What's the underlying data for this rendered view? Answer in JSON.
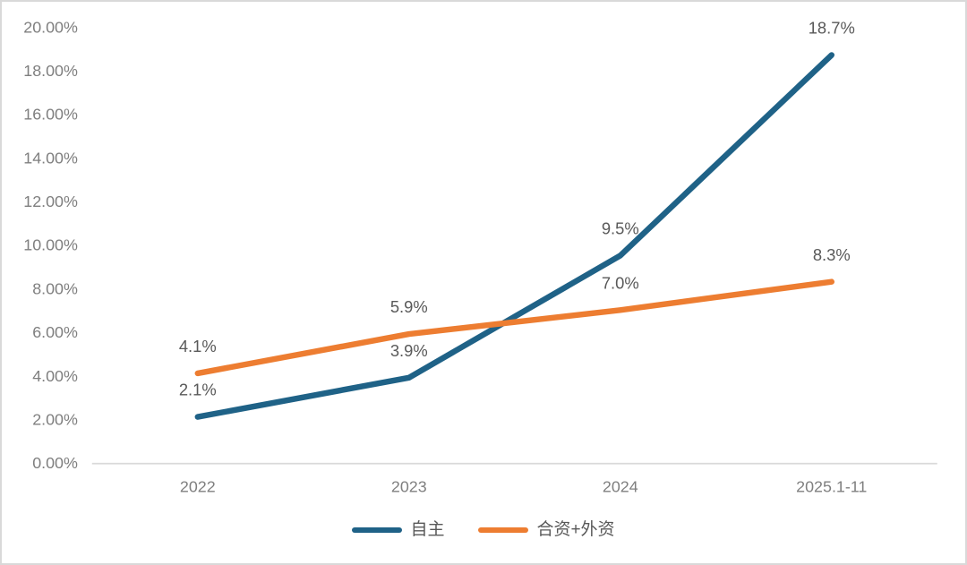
{
  "chart_data": {
    "type": "line",
    "title": "",
    "xlabel": "",
    "ylabel": "",
    "categories": [
      "2022",
      "2023",
      "2024",
      "2025.1-11"
    ],
    "series": [
      {
        "name": "自主",
        "color": "#1f6287",
        "values": [
          2.1,
          3.9,
          9.5,
          18.7
        ],
        "point_labels": [
          "2.1%",
          "3.9%",
          "9.5%",
          "18.7%"
        ]
      },
      {
        "name": "合资+外资",
        "color": "#ed7d31",
        "values": [
          4.1,
          5.9,
          7.0,
          8.3
        ],
        "point_labels": [
          "4.1%",
          "5.9%",
          "7.0%",
          "8.3%"
        ]
      }
    ],
    "ylim": [
      0,
      20
    ],
    "y_ticks": [
      {
        "value": 0,
        "label": "0.00%"
      },
      {
        "value": 2,
        "label": "2.00%"
      },
      {
        "value": 4,
        "label": "4.00%"
      },
      {
        "value": 6,
        "label": "6.00%"
      },
      {
        "value": 8,
        "label": "8.00%"
      },
      {
        "value": 10,
        "label": "10.00%"
      },
      {
        "value": 12,
        "label": "12.00%"
      },
      {
        "value": 14,
        "label": "14.00%"
      },
      {
        "value": 16,
        "label": "16.00%"
      },
      {
        "value": 18,
        "label": "18.00%"
      },
      {
        "value": 20,
        "label": "20.00%"
      }
    ],
    "grid": false,
    "legend_position": "bottom"
  },
  "colors": {
    "background": "#ffffff",
    "frame_border": "#d9d9d9",
    "axis_line": "#d9d9d9",
    "tick_label": "#7f7f7f",
    "data_label": "#595959",
    "legend_label": "#595959"
  }
}
